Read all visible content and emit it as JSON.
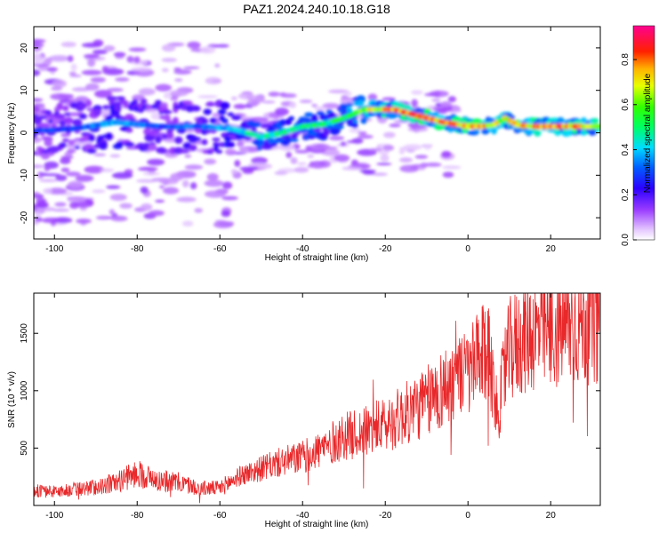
{
  "title": "PAZ1.2024.240.10.18.G18",
  "colors": {
    "snr_line": "#e8282a",
    "axis": "#000000"
  },
  "chart_data": [
    {
      "type": "heatmap",
      "xlabel": "Height of straight line (km)",
      "ylabel": "Frequency (Hz)",
      "xlim": [
        -105,
        32
      ],
      "ylim": [
        -25,
        25
      ],
      "x_ticks": [
        -100,
        -80,
        -60,
        -40,
        -20,
        0,
        20
      ],
      "y_ticks": [
        -20,
        -10,
        0,
        10,
        20
      ],
      "colormap": "rainbow (white-violet-blue-cyan-green-yellow-red-magenta)",
      "colorbar": {
        "label": "Normalized spectral amplitude",
        "range": [
          0,
          0.95
        ],
        "ticks": [
          "0.0",
          "0.2",
          "0.4",
          "0.6",
          "0.8"
        ],
        "tick_values": [
          0.0,
          0.2,
          0.4,
          0.6,
          0.8
        ]
      },
      "ridge": {
        "x": [
          -104,
          -95,
          -85,
          -75,
          -65,
          -57,
          -50,
          -45,
          -40,
          -35,
          -30,
          -25,
          -22,
          -18,
          -14,
          -10,
          -6,
          -3,
          0,
          3,
          6,
          9,
          12,
          16,
          20,
          24,
          28,
          32
        ],
        "freq": [
          0.5,
          1.0,
          2.5,
          1.5,
          1.5,
          1.0,
          -1.0,
          0,
          1.5,
          2.0,
          3.5,
          5.5,
          5.5,
          5.5,
          4.5,
          3.5,
          2.5,
          2.0,
          1.5,
          1.5,
          1.8,
          3.5,
          1.8,
          1.5,
          1.5,
          1.5,
          1.5,
          1.5
        ],
        "amplitude": [
          0.3,
          0.3,
          0.4,
          0.3,
          0.35,
          0.4,
          0.5,
          0.5,
          0.5,
          0.5,
          0.55,
          0.65,
          0.75,
          0.8,
          0.85,
          0.85,
          0.8,
          0.8,
          0.8,
          0.85,
          0.7,
          0.7,
          0.75,
          0.8,
          0.85,
          0.8,
          0.75,
          0.7
        ]
      }
    },
    {
      "type": "line",
      "xlabel": "Height of straight line (km)",
      "ylabel": "SNR (10 * v/v)",
      "xlim": [
        -105,
        32
      ],
      "ylim": [
        0,
        1850
      ],
      "x_ticks": [
        -100,
        -80,
        -60,
        -40,
        -20,
        0,
        20
      ],
      "y_ticks": [
        500,
        1000,
        1500
      ],
      "series": [
        {
          "x": [
            -105,
            -100,
            -95,
            -90,
            -85,
            -80,
            -75,
            -70,
            -65,
            -60,
            -55,
            -50,
            -45,
            -40,
            -35,
            -30,
            -25,
            -20,
            -15,
            -10,
            -5,
            0,
            5,
            7,
            10,
            15,
            20,
            25,
            32
          ],
          "values": [
            130,
            120,
            140,
            160,
            200,
            280,
            220,
            200,
            150,
            150,
            260,
            320,
            380,
            420,
            500,
            600,
            640,
            700,
            800,
            900,
            1050,
            1150,
            1350,
            800,
            1350,
            1500,
            1500,
            1580,
            1620
          ]
        }
      ]
    }
  ]
}
